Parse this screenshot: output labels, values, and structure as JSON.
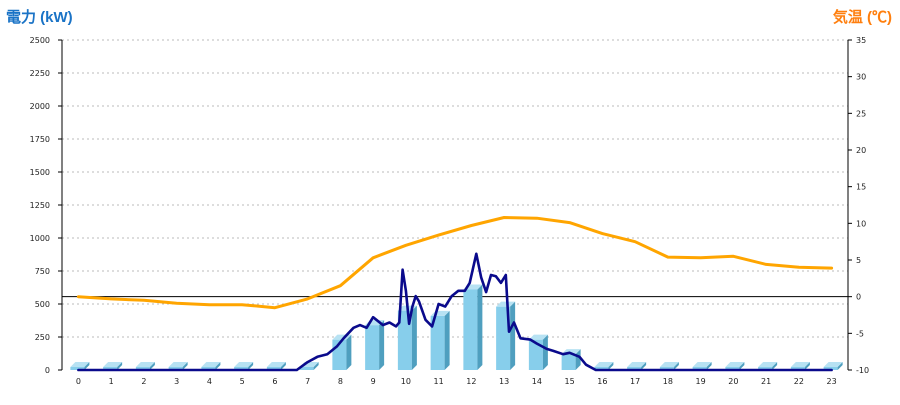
{
  "chart_data": {
    "type": "bar",
    "title": "",
    "ylabel": "電力 (kW)",
    "y2label": "気温 (℃)",
    "xlabel": "",
    "grid": true,
    "ylim": [
      0,
      2500
    ],
    "y2lim": [
      -10,
      35
    ],
    "y_ticks": [
      0,
      250,
      500,
      750,
      1000,
      1250,
      1500,
      1750,
      2000,
      2250,
      2500
    ],
    "y2_ticks": [
      -10,
      -5,
      0,
      5,
      10,
      15,
      20,
      25,
      30,
      35
    ],
    "categories": [
      "0",
      "1",
      "2",
      "3",
      "4",
      "5",
      "6",
      "7",
      "8",
      "9",
      "10",
      "11",
      "12",
      "13",
      "14",
      "15",
      "16",
      "17",
      "18",
      "19",
      "20",
      "21",
      "22",
      "23"
    ],
    "series": [
      {
        "kind": "bar",
        "axis": "left",
        "color": "#87ceeb",
        "values": [
          0,
          0,
          0,
          0,
          0,
          0,
          0,
          0,
          230,
          340,
          450,
          410,
          610,
          480,
          230,
          120,
          0,
          0,
          0,
          0,
          0,
          0,
          0,
          0
        ]
      },
      {
        "kind": "line",
        "axis": "left",
        "color": "#0a0a8c",
        "x": [
          0,
          1,
          2,
          3,
          4,
          5,
          6,
          6.67,
          7,
          7.3,
          7.6,
          7.9,
          8.1,
          8.4,
          8.6,
          8.8,
          9.0,
          9.3,
          9.5,
          9.7,
          9.8,
          9.9,
          10.0,
          10.1,
          10.2,
          10.3,
          10.4,
          10.6,
          10.8,
          11.0,
          11.2,
          11.4,
          11.6,
          11.8,
          11.95,
          12.15,
          12.3,
          12.45,
          12.6,
          12.75,
          12.9,
          13.05,
          13.15,
          13.3,
          13.5,
          13.8,
          14.0,
          14.3,
          14.5,
          14.8,
          15.0,
          15.3,
          15.5,
          15.8,
          16,
          17,
          18,
          19,
          20,
          21,
          22,
          23
        ],
        "values": [
          0,
          0,
          0,
          0,
          0,
          0,
          0,
          0,
          60,
          100,
          120,
          180,
          240,
          320,
          340,
          320,
          400,
          340,
          360,
          330,
          360,
          760,
          600,
          350,
          480,
          560,
          520,
          380,
          330,
          500,
          480,
          560,
          600,
          600,
          660,
          880,
          700,
          590,
          720,
          710,
          660,
          720,
          290,
          360,
          240,
          230,
          200,
          160,
          145,
          120,
          130,
          100,
          40,
          0,
          0,
          0,
          0,
          0,
          0,
          0,
          0,
          0
        ]
      },
      {
        "kind": "line",
        "axis": "right",
        "color": "#ffa500",
        "x": [
          0,
          1,
          2,
          3,
          4,
          5,
          6,
          7,
          8,
          9,
          10,
          11,
          12,
          13,
          14,
          15,
          16,
          17,
          18,
          19,
          20,
          21,
          22,
          23
        ],
        "values": [
          0,
          -0.3,
          -0.5,
          -0.9,
          -1.1,
          -1.1,
          -1.5,
          -0.3,
          1.5,
          5.3,
          7.0,
          8.4,
          9.7,
          10.8,
          10.7,
          10.1,
          8.6,
          7.5,
          5.4,
          5.3,
          5.5,
          4.4,
          4.0,
          3.9
        ]
      }
    ]
  }
}
